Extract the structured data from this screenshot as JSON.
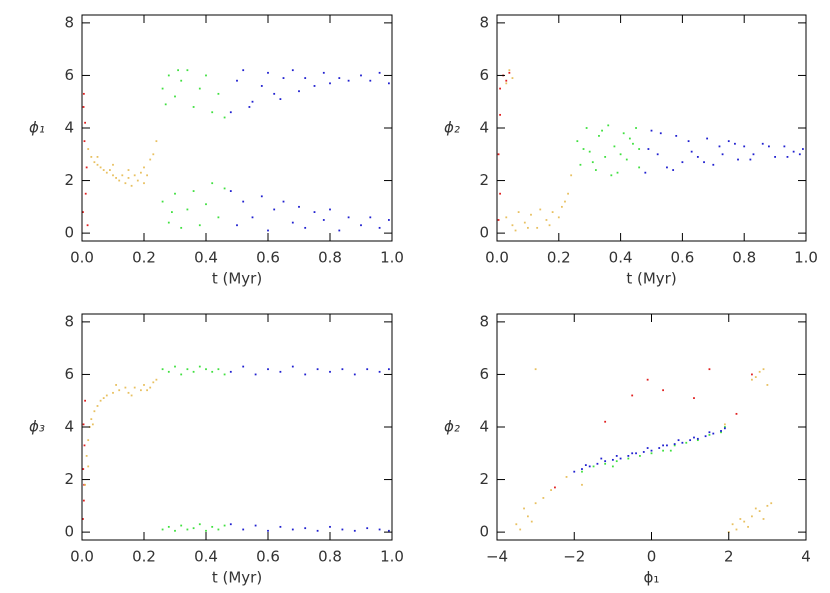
{
  "chart_data": [
    {
      "type": "scatter",
      "xlabel": "t (Myr)",
      "ylabel": "ϕ₁",
      "xlim": [
        0,
        1
      ],
      "ylim": [
        -0.3,
        8.3
      ],
      "xticks": [
        {
          "value": 0,
          "label": "0.0"
        },
        0.2,
        0.4,
        0.6,
        0.8,
        {
          "value": 1,
          "label": "1.0"
        }
      ],
      "yticks": [
        0,
        2,
        4,
        6,
        8
      ],
      "series": [
        {
          "color": "#e02020",
          "x": [
            0.005,
            0.01,
            0.008,
            0.015,
            0.012,
            0.003,
            0.018,
            0.006
          ],
          "y": [
            4.8,
            4.2,
            3.5,
            2.5,
            1.5,
            0.8,
            0.3,
            5.3
          ]
        },
        {
          "color": "#e8c060",
          "x": [
            0.02,
            0.03,
            0.04,
            0.05,
            0.06,
            0.07,
            0.08,
            0.09,
            0.1,
            0.11,
            0.12,
            0.13,
            0.14,
            0.15,
            0.16,
            0.17,
            0.18,
            0.19,
            0.2,
            0.21,
            0.22,
            0.23,
            0.24,
            0.05,
            0.1,
            0.15,
            0.2
          ],
          "y": [
            3.2,
            2.9,
            2.7,
            2.6,
            2.5,
            2.4,
            2.3,
            2.4,
            2.2,
            2.1,
            2.0,
            2.2,
            1.9,
            2.1,
            1.8,
            2.2,
            2.0,
            2.3,
            2.5,
            2.2,
            2.8,
            3.0,
            3.5,
            2.9,
            2.6,
            2.4,
            1.9
          ]
        },
        {
          "color": "#40e040",
          "x": [
            0.26,
            0.28,
            0.3,
            0.32,
            0.34,
            0.36,
            0.38,
            0.4,
            0.42,
            0.44,
            0.46,
            0.27,
            0.31,
            0.26,
            0.28,
            0.3,
            0.32,
            0.34,
            0.36,
            0.38,
            0.4,
            0.42,
            0.44,
            0.46,
            0.29
          ],
          "y": [
            5.5,
            6.0,
            5.2,
            5.8,
            6.2,
            4.8,
            5.5,
            6.0,
            4.6,
            5.3,
            4.4,
            4.9,
            6.2,
            1.2,
            0.4,
            1.5,
            0.2,
            0.9,
            1.6,
            0.3,
            1.1,
            1.9,
            0.6,
            1.7,
            0.8
          ]
        },
        {
          "color": "#2020d0",
          "x": [
            0.48,
            0.5,
            0.52,
            0.55,
            0.58,
            0.6,
            0.62,
            0.65,
            0.68,
            0.7,
            0.72,
            0.75,
            0.78,
            0.8,
            0.83,
            0.86,
            0.9,
            0.93,
            0.96,
            0.99,
            0.54,
            0.64,
            0.48,
            0.5,
            0.52,
            0.55,
            0.58,
            0.6,
            0.62,
            0.65,
            0.68,
            0.7,
            0.72,
            0.75,
            0.78,
            0.8,
            0.83,
            0.86,
            0.9,
            0.93,
            0.96,
            0.99
          ],
          "y": [
            4.6,
            5.8,
            6.2,
            5.0,
            5.6,
            6.1,
            5.3,
            5.9,
            6.2,
            5.4,
            5.9,
            5.6,
            6.1,
            5.7,
            5.9,
            5.8,
            6.0,
            5.8,
            6.1,
            5.7,
            4.8,
            5.1,
            1.6,
            0.3,
            1.2,
            0.6,
            1.4,
            0.1,
            0.9,
            1.2,
            0.4,
            1.0,
            0.2,
            0.8,
            0.5,
            0.9,
            0.1,
            0.6,
            0.3,
            0.6,
            0.2,
            0.5
          ]
        }
      ]
    },
    {
      "type": "scatter",
      "xlabel": "t (Myr)",
      "ylabel": "ϕ₂",
      "xlim": [
        0,
        1
      ],
      "ylim": [
        -0.3,
        8.3
      ],
      "xticks": [
        {
          "value": 0,
          "label": "0.0"
        },
        0.2,
        0.4,
        0.6,
        0.8,
        {
          "value": 1,
          "label": "1.0"
        }
      ],
      "yticks": [
        0,
        2,
        4,
        6,
        8
      ],
      "series": [
        {
          "color": "#e02020",
          "x": [
            0.01,
            0.02,
            0.03,
            0.01,
            0.005,
            0.01,
            0.005,
            0.04
          ],
          "y": [
            5.5,
            6.0,
            5.8,
            4.5,
            3.0,
            1.5,
            0.5,
            6.1
          ]
        },
        {
          "color": "#e8c060",
          "x": [
            0.03,
            0.04,
            0.05,
            0.03,
            0.05,
            0.07,
            0.09,
            0.11,
            0.13,
            0.14,
            0.16,
            0.18,
            0.2,
            0.21,
            0.22,
            0.23,
            0.24,
            0.06,
            0.1,
            0.17
          ],
          "y": [
            5.7,
            6.2,
            5.9,
            0.6,
            0.3,
            0.8,
            0.4,
            0.7,
            0.2,
            0.9,
            0.5,
            0.8,
            0.6,
            1.0,
            1.2,
            1.5,
            2.2,
            0.1,
            0.2,
            0.3
          ]
        },
        {
          "color": "#40e040",
          "x": [
            0.26,
            0.27,
            0.29,
            0.3,
            0.32,
            0.33,
            0.35,
            0.36,
            0.38,
            0.39,
            0.41,
            0.42,
            0.44,
            0.45,
            0.46,
            0.28,
            0.31,
            0.34,
            0.37,
            0.4,
            0.43,
            0.46
          ],
          "y": [
            3.5,
            2.6,
            4.0,
            3.1,
            2.4,
            3.7,
            2.9,
            4.1,
            3.3,
            2.3,
            3.8,
            2.8,
            3.4,
            4.0,
            2.5,
            3.2,
            2.7,
            3.9,
            2.2,
            3.0,
            3.6,
            3.2
          ]
        },
        {
          "color": "#2020d0",
          "x": [
            0.48,
            0.5,
            0.52,
            0.55,
            0.58,
            0.6,
            0.62,
            0.65,
            0.68,
            0.7,
            0.72,
            0.75,
            0.78,
            0.8,
            0.83,
            0.86,
            0.9,
            0.93,
            0.96,
            0.99,
            0.49,
            0.53,
            0.57,
            0.63,
            0.67,
            0.73,
            0.77,
            0.82,
            0.88,
            0.94,
            0.98
          ],
          "y": [
            2.3,
            3.9,
            3.0,
            2.5,
            3.7,
            2.7,
            3.5,
            2.9,
            3.6,
            2.6,
            3.3,
            3.5,
            2.8,
            3.3,
            3.0,
            3.4,
            2.9,
            3.3,
            3.1,
            3.2,
            3.2,
            3.8,
            2.4,
            3.1,
            2.7,
            3.0,
            3.4,
            2.8,
            3.3,
            2.9,
            3.0
          ]
        }
      ]
    },
    {
      "type": "scatter",
      "xlabel": "t (Myr)",
      "ylabel": "ϕ₃",
      "xlim": [
        0,
        1
      ],
      "ylim": [
        -0.3,
        8.3
      ],
      "xticks": [
        {
          "value": 0,
          "label": "0.0"
        },
        0.2,
        0.4,
        0.6,
        0.8,
        {
          "value": 1,
          "label": "1.0"
        }
      ],
      "yticks": [
        0,
        2,
        4,
        6,
        8
      ],
      "series": [
        {
          "color": "#e02020",
          "x": [
            0.003,
            0.006,
            0.004,
            0.008,
            0.005,
            0.01,
            0.007
          ],
          "y": [
            0.5,
            1.2,
            2.4,
            3.3,
            4.1,
            5.0,
            1.8
          ]
        },
        {
          "color": "#e8c060",
          "x": [
            0.01,
            0.015,
            0.02,
            0.025,
            0.03,
            0.04,
            0.05,
            0.06,
            0.08,
            0.1,
            0.12,
            0.14,
            0.15,
            0.17,
            0.19,
            0.2,
            0.22,
            0.23,
            0.24,
            0.02,
            0.035,
            0.07,
            0.11,
            0.16,
            0.21
          ],
          "y": [
            1.8,
            2.9,
            3.5,
            4.0,
            4.3,
            4.6,
            4.8,
            5.0,
            5.2,
            5.3,
            5.4,
            5.5,
            5.3,
            5.5,
            5.4,
            5.6,
            5.5,
            5.7,
            5.8,
            2.5,
            4.1,
            5.1,
            5.6,
            5.2,
            5.4
          ]
        },
        {
          "color": "#40e040",
          "x": [
            0.26,
            0.28,
            0.3,
            0.32,
            0.34,
            0.36,
            0.38,
            0.4,
            0.42,
            0.44,
            0.46,
            0.26,
            0.28,
            0.3,
            0.32,
            0.34,
            0.36,
            0.38,
            0.4,
            0.42,
            0.44,
            0.46
          ],
          "y": [
            6.2,
            6.1,
            6.3,
            6.0,
            6.2,
            6.1,
            6.3,
            6.2,
            6.1,
            6.2,
            6.0,
            0.1,
            0.2,
            0.05,
            0.25,
            0.1,
            0.15,
            0.3,
            0.05,
            0.2,
            0.1,
            0.25
          ]
        },
        {
          "color": "#2020d0",
          "x": [
            0.48,
            0.52,
            0.56,
            0.6,
            0.64,
            0.68,
            0.72,
            0.76,
            0.8,
            0.84,
            0.88,
            0.92,
            0.96,
            0.99,
            0.48,
            0.52,
            0.56,
            0.6,
            0.64,
            0.68,
            0.72,
            0.76,
            0.8,
            0.84,
            0.88,
            0.92,
            0.96,
            0.99
          ],
          "y": [
            6.1,
            6.3,
            6.0,
            6.2,
            6.1,
            6.3,
            6.0,
            6.2,
            6.1,
            6.2,
            6.0,
            6.2,
            6.1,
            6.2,
            0.3,
            0.1,
            0.25,
            0.05,
            0.2,
            0.1,
            0.15,
            0.05,
            0.2,
            0.1,
            0.05,
            0.15,
            0.1,
            0.05
          ]
        }
      ]
    },
    {
      "type": "scatter",
      "xlabel": "ϕ₁",
      "ylabel": "ϕ₂",
      "xlim": [
        -4,
        4
      ],
      "ylim": [
        -0.3,
        8.3
      ],
      "xticks": [
        {
          "value": -4,
          "label": "−4"
        },
        {
          "value": -2,
          "label": "−2"
        },
        0,
        2,
        4
      ],
      "yticks": [
        0,
        2,
        4,
        6,
        8
      ],
      "series": [
        {
          "color": "#e02020",
          "x": [
            -1.2,
            -0.5,
            0.3,
            1.1,
            1.5,
            -2.5,
            2.2,
            -0.1,
            2.6
          ],
          "y": [
            4.2,
            5.2,
            5.4,
            5.1,
            6.2,
            1.7,
            4.5,
            5.8,
            6.0
          ]
        },
        {
          "color": "#e8c060",
          "x": [
            -3.4,
            -3.2,
            -3.0,
            -2.8,
            -2.6,
            -3.5,
            -3.3,
            -3.1,
            2.2,
            2.4,
            2.6,
            2.8,
            3.0,
            2.3,
            2.5,
            2.7,
            2.9,
            3.1,
            2.1,
            2.6,
            2.8,
            3.0,
            2.9,
            2.7,
            -1.8,
            -2.2,
            1.9,
            2.0,
            -3.0
          ],
          "y": [
            0.1,
            0.6,
            1.1,
            1.3,
            1.6,
            0.3,
            0.9,
            0.4,
            0.1,
            0.4,
            0.6,
            0.8,
            1.0,
            0.5,
            0.2,
            0.9,
            0.5,
            1.1,
            0.3,
            5.8,
            6.1,
            5.6,
            6.2,
            5.9,
            1.8,
            2.1,
            4.1,
            0.0,
            6.2
          ]
        },
        {
          "color": "#40e040",
          "x": [
            -1.8,
            -1.5,
            -1.2,
            -0.9,
            -0.6,
            -0.3,
            0.0,
            0.3,
            0.6,
            0.9,
            1.2,
            1.5,
            1.8,
            -1.0,
            0.5,
            1.9
          ],
          "y": [
            2.3,
            2.5,
            2.6,
            2.7,
            2.8,
            2.9,
            3.0,
            3.1,
            3.3,
            3.4,
            3.5,
            3.7,
            3.8,
            2.5,
            3.1,
            4.0
          ]
        },
        {
          "color": "#2020d0",
          "x": [
            -2.0,
            -1.8,
            -1.6,
            -1.4,
            -1.2,
            -1.0,
            -0.8,
            -0.6,
            -0.4,
            -0.2,
            0.0,
            0.2,
            0.4,
            0.6,
            0.8,
            1.0,
            1.2,
            1.4,
            1.6,
            1.8,
            1.9,
            -1.7,
            -1.3,
            -0.9,
            -0.5,
            -0.1,
            0.3,
            0.7,
            1.1,
            1.5
          ],
          "y": [
            2.3,
            2.4,
            2.5,
            2.6,
            2.7,
            2.75,
            2.8,
            2.9,
            3.0,
            3.05,
            3.1,
            3.2,
            3.3,
            3.35,
            3.4,
            3.5,
            3.55,
            3.65,
            3.75,
            3.85,
            3.95,
            2.55,
            2.8,
            2.9,
            3.0,
            3.2,
            3.3,
            3.5,
            3.6,
            3.8
          ]
        }
      ]
    }
  ]
}
